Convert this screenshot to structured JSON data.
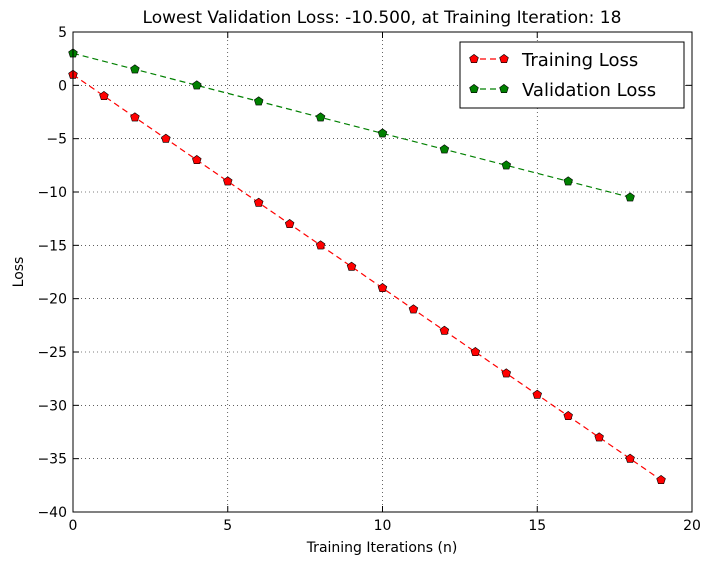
{
  "chart_data": {
    "type": "line",
    "title": "Lowest Validation Loss: -10.500, at Training Iteration: 18",
    "xlabel": "Training Iterations (n)",
    "ylabel": "Loss",
    "xlim": [
      0,
      20
    ],
    "ylim": [
      -40,
      5
    ],
    "xticks": [
      0,
      5,
      10,
      15,
      20
    ],
    "yticks": [
      5,
      0,
      -5,
      -10,
      -15,
      -20,
      -25,
      -30,
      -35,
      -40
    ],
    "grid": true,
    "legend_position": "top-right",
    "series": [
      {
        "name": "Training Loss",
        "color": "#ff0000",
        "marker": "pentagon",
        "linestyle": "dashed",
        "x": [
          0,
          1,
          2,
          3,
          4,
          5,
          6,
          7,
          8,
          9,
          10,
          11,
          12,
          13,
          14,
          15,
          16,
          17,
          18,
          19
        ],
        "y": [
          1,
          -1,
          -3,
          -5,
          -7,
          -9,
          -11,
          -13,
          -15,
          -17,
          -19,
          -21,
          -23,
          -25,
          -27,
          -29,
          -31,
          -33,
          -35,
          -37
        ]
      },
      {
        "name": "Validation Loss",
        "color": "#008000",
        "marker": "pentagon",
        "linestyle": "dashed",
        "x": [
          0,
          2,
          4,
          6,
          8,
          10,
          12,
          14,
          16,
          18
        ],
        "y": [
          3,
          1.5,
          0,
          -1.5,
          -3,
          -4.5,
          -6,
          -7.5,
          -9,
          -10.5
        ]
      }
    ]
  }
}
